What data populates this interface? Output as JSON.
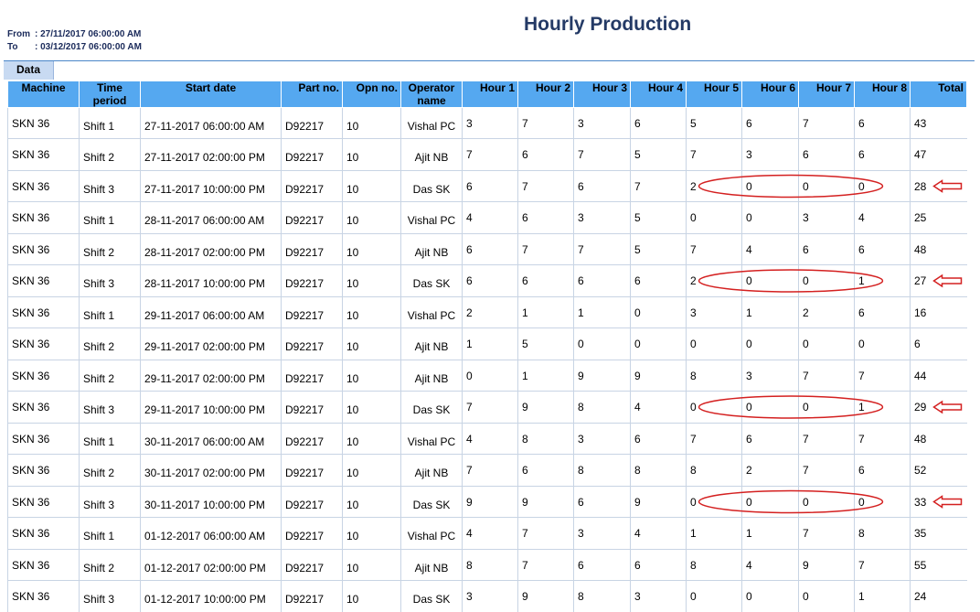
{
  "range": {
    "from_label": "From",
    "from_value": ": 27/11/2017 06:00:00 AM",
    "to_label": "To",
    "to_value": ": 03/12/2017 06:00:00 AM"
  },
  "title": "Hourly Production",
  "tab": "Data",
  "columns": [
    "Machine",
    "Time period",
    "Start date",
    "Part no.",
    "Opn no.",
    "Operator name",
    "Hour 1",
    "Hour 2",
    "Hour 3",
    "Hour 4",
    "Hour 5",
    "Hour 6",
    "Hour 7",
    "Hour 8",
    "Total"
  ],
  "rows": [
    [
      "SKN 36",
      "Shift 1",
      "27-11-2017 06:00:00 AM",
      "D92217",
      "10",
      "Vishal PC",
      "3",
      "7",
      "3",
      "6",
      "5",
      "6",
      "7",
      "6",
      "43"
    ],
    [
      "SKN 36",
      "Shift 2",
      "27-11-2017 02:00:00 PM",
      "D92217",
      "10",
      "Ajit NB",
      "7",
      "6",
      "7",
      "5",
      "7",
      "3",
      "6",
      "6",
      "47"
    ],
    [
      "SKN 36",
      "Shift 3",
      "27-11-2017 10:00:00 PM",
      "D92217",
      "10",
      "Das SK",
      "6",
      "7",
      "6",
      "7",
      "2",
      "0",
      "0",
      "0",
      "28"
    ],
    [
      "SKN 36",
      "Shift 1",
      "28-11-2017 06:00:00 AM",
      "D92217",
      "10",
      "Vishal PC",
      "4",
      "6",
      "3",
      "5",
      "0",
      "0",
      "3",
      "4",
      "25"
    ],
    [
      "SKN 36",
      "Shift 2",
      "28-11-2017 02:00:00 PM",
      "D92217",
      "10",
      "Ajit NB",
      "6",
      "7",
      "7",
      "5",
      "7",
      "4",
      "6",
      "6",
      "48"
    ],
    [
      "SKN 36",
      "Shift 3",
      "28-11-2017 10:00:00 PM",
      "D92217",
      "10",
      "Das SK",
      "6",
      "6",
      "6",
      "6",
      "2",
      "0",
      "0",
      "1",
      "27"
    ],
    [
      "SKN 36",
      "Shift 1",
      "29-11-2017 06:00:00 AM",
      "D92217",
      "10",
      "Vishal PC",
      "2",
      "1",
      "1",
      "0",
      "3",
      "1",
      "2",
      "6",
      "16"
    ],
    [
      "SKN 36",
      "Shift 2",
      "29-11-2017 02:00:00 PM",
      "D92217",
      "10",
      "Ajit NB",
      "1",
      "5",
      "0",
      "0",
      "0",
      "0",
      "0",
      "0",
      "6"
    ],
    [
      "SKN 36",
      "Shift 2",
      "29-11-2017 02:00:00 PM",
      "D92217",
      "10",
      "Ajit NB",
      "0",
      "1",
      "9",
      "9",
      "8",
      "3",
      "7",
      "7",
      "44"
    ],
    [
      "SKN 36",
      "Shift 3",
      "29-11-2017 10:00:00 PM",
      "D92217",
      "10",
      "Das SK",
      "7",
      "9",
      "8",
      "4",
      "0",
      "0",
      "0",
      "1",
      "29"
    ],
    [
      "SKN 36",
      "Shift 1",
      "30-11-2017 06:00:00 AM",
      "D92217",
      "10",
      "Vishal PC",
      "4",
      "8",
      "3",
      "6",
      "7",
      "6",
      "7",
      "7",
      "48"
    ],
    [
      "SKN 36",
      "Shift 2",
      "30-11-2017 02:00:00 PM",
      "D92217",
      "10",
      "Ajit NB",
      "7",
      "6",
      "8",
      "8",
      "8",
      "2",
      "7",
      "6",
      "52"
    ],
    [
      "SKN 36",
      "Shift 3",
      "30-11-2017 10:00:00 PM",
      "D92217",
      "10",
      "Das SK",
      "9",
      "9",
      "6",
      "9",
      "0",
      "0",
      "0",
      "0",
      "33"
    ],
    [
      "SKN 36",
      "Shift 1",
      "01-12-2017 06:00:00 AM",
      "D92217",
      "10",
      "Vishal PC",
      "4",
      "7",
      "3",
      "4",
      "1",
      "1",
      "7",
      "8",
      "35"
    ],
    [
      "SKN 36",
      "Shift 2",
      "01-12-2017 02:00:00 PM",
      "D92217",
      "10",
      "Ajit NB",
      "8",
      "7",
      "6",
      "6",
      "8",
      "4",
      "9",
      "7",
      "55"
    ],
    [
      "SKN 36",
      "Shift 3",
      "01-12-2017 10:00:00 PM",
      "D92217",
      "10",
      "Das SK",
      "3",
      "9",
      "8",
      "3",
      "0",
      "0",
      "0",
      "1",
      "24"
    ]
  ],
  "highlighted_rows": [
    2,
    5,
    9,
    12,
    15
  ],
  "annotation_color": "#d42020"
}
